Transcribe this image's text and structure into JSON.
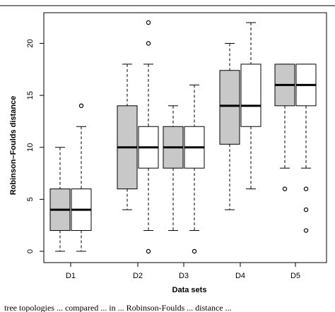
{
  "caption": {
    "top": "",
    "bottom": "tree topologies ... compared ... in ... Robinson-Foulds ... distance ..."
  },
  "chart_data": {
    "type": "box",
    "xlabel": "Data sets",
    "ylabel": "Robinson–Foulds distance",
    "ylim": [
      0,
      22
    ],
    "yticks": [
      0,
      5,
      10,
      15,
      20
    ],
    "categories": [
      "D1",
      "D2",
      "D3",
      "D4",
      "D5"
    ],
    "grid": false,
    "legend": "none",
    "series": [
      {
        "fill": "#c8c8c8",
        "boxes": [
          {
            "category": "D1",
            "whisker_low": 0,
            "q1": 2,
            "median": 4,
            "q3": 6,
            "whisker_high": 10,
            "outliers": []
          },
          {
            "category": "D2",
            "whisker_low": 4,
            "q1": 6,
            "median": 10,
            "q3": 14,
            "whisker_high": 18,
            "outliers": []
          },
          {
            "category": "D3",
            "whisker_low": 2,
            "q1": 8,
            "median": 10,
            "q3": 12,
            "whisker_high": 14,
            "outliers": []
          },
          {
            "category": "D4",
            "whisker_low": 4,
            "q1": 10.3,
            "median": 14,
            "q3": 17.4,
            "whisker_high": 20,
            "outliers": []
          },
          {
            "category": "D5",
            "whisker_low": 8,
            "q1": 14,
            "median": 16,
            "q3": 18,
            "whisker_high": 18,
            "outliers": [
              6
            ]
          }
        ]
      },
      {
        "fill": "#ffffff",
        "boxes": [
          {
            "category": "D1",
            "whisker_low": 0,
            "q1": 2,
            "median": 4,
            "q3": 6,
            "whisker_high": 12,
            "outliers": [
              14
            ]
          },
          {
            "category": "D2",
            "whisker_low": 2,
            "q1": 8,
            "median": 10,
            "q3": 12,
            "whisker_high": 18,
            "outliers": [
              0,
              20,
              22
            ]
          },
          {
            "category": "D3",
            "whisker_low": 2,
            "q1": 8,
            "median": 10,
            "q3": 12,
            "whisker_high": 16,
            "outliers": [
              0
            ]
          },
          {
            "category": "D4",
            "whisker_low": 6,
            "q1": 12,
            "median": 14,
            "q3": 18,
            "whisker_high": 22,
            "outliers": []
          },
          {
            "category": "D5",
            "whisker_low": 8,
            "q1": 14,
            "median": 16,
            "q3": 18,
            "whisker_high": 18,
            "outliers": [
              2,
              4,
              6
            ]
          }
        ]
      }
    ]
  }
}
